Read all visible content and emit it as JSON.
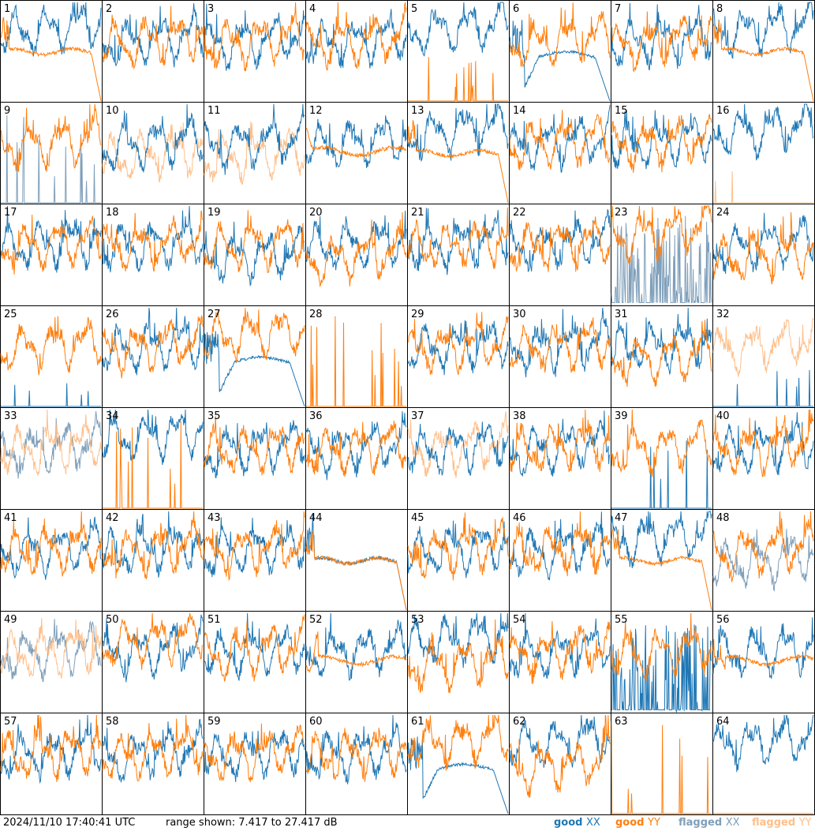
{
  "chart_data": {
    "type": "line",
    "title": "",
    "layout": "8x8 grid of antenna spectra",
    "x": {
      "label": "",
      "ticks": false
    },
    "y": {
      "label": "",
      "range": [
        7.417,
        27.417
      ],
      "unit": "dB"
    },
    "grid": false,
    "legend_placement": "bottom-right",
    "series_styles": {
      "good XX": "#1f77b4",
      "good YY": "#ff7f0e",
      "flagged XX": "#7f9fba",
      "flagged YY": "#ffbf8a"
    },
    "panels": [
      {
        "id": "1",
        "xx": "good",
        "yy": "good",
        "xx_shape": "normal-high",
        "yy_shape": "plateau-drop"
      },
      {
        "id": "2",
        "xx": "good",
        "yy": "good",
        "xx_shape": "normal",
        "yy_shape": "normal"
      },
      {
        "id": "3",
        "xx": "good",
        "yy": "good",
        "xx_shape": "normal",
        "yy_shape": "normal"
      },
      {
        "id": "4",
        "xx": "good",
        "yy": "good",
        "xx_shape": "normal",
        "yy_shape": "normal"
      },
      {
        "id": "5",
        "xx": "good",
        "yy": "good",
        "xx_shape": "normal-high",
        "yy_shape": "spikes-faint"
      },
      {
        "id": "6",
        "xx": "good",
        "yy": "good",
        "xx_shape": "dip-hump",
        "yy_shape": "normal"
      },
      {
        "id": "7",
        "xx": "good",
        "yy": "good",
        "xx_shape": "normal",
        "yy_shape": "normal"
      },
      {
        "id": "8",
        "xx": "good",
        "yy": "good",
        "xx_shape": "normal-high",
        "yy_shape": "plateau-drop"
      },
      {
        "id": "9",
        "xx": "flagged",
        "yy": "good",
        "xx_shape": "spikes",
        "yy_shape": "normal"
      },
      {
        "id": "10",
        "xx": "good",
        "yy": "flagged",
        "xx_shape": "normal",
        "yy_shape": "normal-low"
      },
      {
        "id": "11",
        "xx": "good",
        "yy": "flagged",
        "xx_shape": "normal",
        "yy_shape": "normal-low"
      },
      {
        "id": "12",
        "xx": "good",
        "yy": "good",
        "xx_shape": "normal",
        "yy_shape": "plateau"
      },
      {
        "id": "13",
        "xx": "good",
        "yy": "good",
        "xx_shape": "normal-high",
        "yy_shape": "plateau-drop"
      },
      {
        "id": "14",
        "xx": "good",
        "yy": "good",
        "xx_shape": "normal",
        "yy_shape": "normal"
      },
      {
        "id": "15",
        "xx": "good",
        "yy": "good",
        "xx_shape": "normal",
        "yy_shape": "normal"
      },
      {
        "id": "16",
        "xx": "good",
        "yy": "flagged",
        "xx_shape": "normal-high",
        "yy_shape": "spikes-faint"
      },
      {
        "id": "17",
        "xx": "good",
        "yy": "good",
        "xx_shape": "normal",
        "yy_shape": "normal"
      },
      {
        "id": "18",
        "xx": "good",
        "yy": "good",
        "xx_shape": "normal",
        "yy_shape": "normal"
      },
      {
        "id": "19",
        "xx": "good",
        "yy": "good",
        "xx_shape": "normal-low",
        "yy_shape": "normal"
      },
      {
        "id": "20",
        "xx": "good",
        "yy": "good",
        "xx_shape": "normal",
        "yy_shape": "normal-low"
      },
      {
        "id": "21",
        "xx": "good",
        "yy": "good",
        "xx_shape": "normal",
        "yy_shape": "normal"
      },
      {
        "id": "22",
        "xx": "good",
        "yy": "good",
        "xx_shape": "normal",
        "yy_shape": "normal"
      },
      {
        "id": "23",
        "xx": "flagged",
        "yy": "good",
        "xx_shape": "spikes-dense",
        "yy_shape": "normal-high"
      },
      {
        "id": "24",
        "xx": "good",
        "yy": "good",
        "xx_shape": "normal",
        "yy_shape": "normal-low"
      },
      {
        "id": "25",
        "xx": "good",
        "yy": "good",
        "xx_shape": "spikes-faint",
        "yy_shape": "normal"
      },
      {
        "id": "26",
        "xx": "good",
        "yy": "good",
        "xx_shape": "normal",
        "yy_shape": "normal"
      },
      {
        "id": "27",
        "xx": "good",
        "yy": "good",
        "xx_shape": "dip-hump",
        "yy_shape": "normal-high"
      },
      {
        "id": "28",
        "xx": "none",
        "yy": "good",
        "xx_shape": "none",
        "yy_shape": "spikes"
      },
      {
        "id": "29",
        "xx": "good",
        "yy": "good",
        "xx_shape": "normal",
        "yy_shape": "normal"
      },
      {
        "id": "30",
        "xx": "good",
        "yy": "good",
        "xx_shape": "normal",
        "yy_shape": "normal"
      },
      {
        "id": "31",
        "xx": "good",
        "yy": "good",
        "xx_shape": "normal",
        "yy_shape": "normal-low"
      },
      {
        "id": "32",
        "xx": "good",
        "yy": "flagged",
        "xx_shape": "spikes-faint",
        "yy_shape": "normal"
      },
      {
        "id": "33",
        "xx": "flagged",
        "yy": "flagged",
        "xx_shape": "normal",
        "yy_shape": "normal"
      },
      {
        "id": "34",
        "xx": "good",
        "yy": "good",
        "xx_shape": "normal-high",
        "yy_shape": "spikes"
      },
      {
        "id": "35",
        "xx": "good",
        "yy": "good",
        "xx_shape": "normal",
        "yy_shape": "normal"
      },
      {
        "id": "36",
        "xx": "good",
        "yy": "good",
        "xx_shape": "normal",
        "yy_shape": "normal"
      },
      {
        "id": "37",
        "xx": "good",
        "yy": "flagged",
        "xx_shape": "normal",
        "yy_shape": "normal"
      },
      {
        "id": "38",
        "xx": "good",
        "yy": "good",
        "xx_shape": "normal",
        "yy_shape": "normal"
      },
      {
        "id": "39",
        "xx": "good",
        "yy": "good",
        "xx_shape": "spikes",
        "yy_shape": "normal"
      },
      {
        "id": "40",
        "xx": "good",
        "yy": "good",
        "xx_shape": "normal",
        "yy_shape": "normal"
      },
      {
        "id": "41",
        "xx": "good",
        "yy": "good",
        "xx_shape": "normal",
        "yy_shape": "normal"
      },
      {
        "id": "42",
        "xx": "good",
        "yy": "good",
        "xx_shape": "normal",
        "yy_shape": "normal"
      },
      {
        "id": "43",
        "xx": "good",
        "yy": "good",
        "xx_shape": "normal",
        "yy_shape": "normal"
      },
      {
        "id": "44",
        "xx": "good",
        "yy": "good",
        "xx_shape": "plateau-drop",
        "yy_shape": "plateau-drop"
      },
      {
        "id": "45",
        "xx": "good",
        "yy": "good",
        "xx_shape": "normal",
        "yy_shape": "normal"
      },
      {
        "id": "46",
        "xx": "good",
        "yy": "good",
        "xx_shape": "normal",
        "yy_shape": "normal"
      },
      {
        "id": "47",
        "xx": "good",
        "yy": "good",
        "xx_shape": "normal-high",
        "yy_shape": "plateau-drop"
      },
      {
        "id": "48",
        "xx": "flagged",
        "yy": "good",
        "xx_shape": "normal-low",
        "yy_shape": "normal"
      },
      {
        "id": "49",
        "xx": "flagged",
        "yy": "flagged",
        "xx_shape": "normal",
        "yy_shape": "normal"
      },
      {
        "id": "50",
        "xx": "good",
        "yy": "good",
        "xx_shape": "normal",
        "yy_shape": "normal-high"
      },
      {
        "id": "51",
        "xx": "good",
        "yy": "good",
        "xx_shape": "normal",
        "yy_shape": "normal"
      },
      {
        "id": "52",
        "xx": "good",
        "yy": "good",
        "xx_shape": "normal",
        "yy_shape": "plateau"
      },
      {
        "id": "53",
        "xx": "good",
        "yy": "good",
        "xx_shape": "normal-high",
        "yy_shape": "normal-low"
      },
      {
        "id": "54",
        "xx": "good",
        "yy": "good",
        "xx_shape": "normal",
        "yy_shape": "normal"
      },
      {
        "id": "55",
        "xx": "good",
        "yy": "good",
        "xx_shape": "spikes-dense",
        "yy_shape": "normal"
      },
      {
        "id": "56",
        "xx": "good",
        "yy": "good",
        "xx_shape": "normal",
        "yy_shape": "plateau"
      },
      {
        "id": "57",
        "xx": "good",
        "yy": "good",
        "xx_shape": "normal",
        "yy_shape": "normal"
      },
      {
        "id": "58",
        "xx": "good",
        "yy": "good",
        "xx_shape": "normal",
        "yy_shape": "normal"
      },
      {
        "id": "59",
        "xx": "good",
        "yy": "good",
        "xx_shape": "normal",
        "yy_shape": "normal"
      },
      {
        "id": "60",
        "xx": "good",
        "yy": "good",
        "xx_shape": "normal",
        "yy_shape": "normal"
      },
      {
        "id": "61",
        "xx": "good",
        "yy": "good",
        "xx_shape": "dip-hump",
        "yy_shape": "normal-high"
      },
      {
        "id": "62",
        "xx": "good",
        "yy": "good",
        "xx_shape": "normal-high",
        "yy_shape": "normal-low"
      },
      {
        "id": "63",
        "xx": "none",
        "yy": "good",
        "xx_shape": "none",
        "yy_shape": "spikes"
      },
      {
        "id": "64",
        "xx": "good",
        "yy": "good",
        "xx_shape": "normal-high",
        "yy_shape": "spikes-faint"
      }
    ]
  },
  "footer": {
    "timestamp": "2024/11/10 17:40:41 UTC",
    "range_text": "range shown: 7.417 to 27.417 dB"
  },
  "legend": [
    {
      "state": "good",
      "pol": "XX",
      "color": "#1f77b4"
    },
    {
      "state": "good",
      "pol": "YY",
      "color": "#ff7f0e"
    },
    {
      "state": "flagged",
      "pol": "XX",
      "color": "#7f9fba"
    },
    {
      "state": "flagged",
      "pol": "YY",
      "color": "#ffbf8a"
    }
  ]
}
